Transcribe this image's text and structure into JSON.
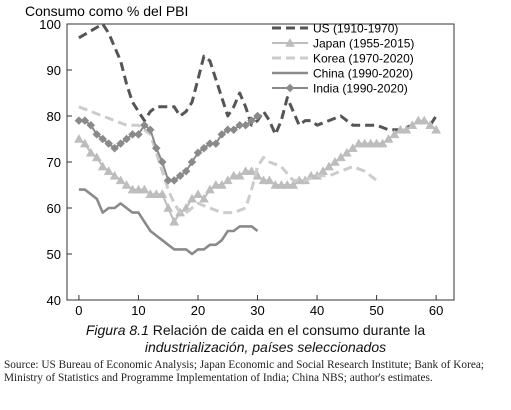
{
  "chart_data": {
    "type": "line",
    "title": "Consumo como % del PBI",
    "xlabel": "",
    "ylabel": "",
    "xlim": [
      -2,
      63
    ],
    "ylim": [
      40,
      100
    ],
    "x_ticks": [
      0,
      10,
      20,
      30,
      40,
      50,
      60
    ],
    "y_ticks": [
      40,
      50,
      60,
      70,
      80,
      90,
      100
    ],
    "legend_position": "top-right",
    "series": [
      {
        "name": "US (1910-1970)",
        "style": "dashed",
        "color": "#555555",
        "marker": "none",
        "points": [
          [
            0,
            97
          ],
          [
            2,
            98.5
          ],
          [
            4,
            100
          ],
          [
            5,
            98
          ],
          [
            6,
            95
          ],
          [
            7,
            92
          ],
          [
            8,
            87
          ],
          [
            9,
            83
          ],
          [
            10,
            81
          ],
          [
            11,
            79
          ],
          [
            12,
            81
          ],
          [
            13,
            82
          ],
          [
            14,
            82
          ],
          [
            15,
            82
          ],
          [
            16,
            82
          ],
          [
            17,
            80
          ],
          [
            18,
            81
          ],
          [
            19,
            83
          ],
          [
            20,
            88
          ],
          [
            21,
            93
          ],
          [
            22,
            92
          ],
          [
            23,
            88
          ],
          [
            24,
            84
          ],
          [
            25,
            80
          ],
          [
            26,
            82
          ],
          [
            27,
            85
          ],
          [
            28,
            82
          ],
          [
            29,
            78
          ],
          [
            30,
            79
          ],
          [
            31,
            81
          ],
          [
            32,
            79
          ],
          [
            33,
            76
          ],
          [
            34,
            79
          ],
          [
            35,
            84
          ],
          [
            36,
            81
          ],
          [
            37,
            78
          ],
          [
            38,
            79
          ],
          [
            39,
            79
          ],
          [
            40,
            78
          ],
          [
            42,
            79
          ],
          [
            44,
            80
          ],
          [
            46,
            78
          ],
          [
            48,
            78
          ],
          [
            50,
            78
          ],
          [
            52,
            77
          ],
          [
            54,
            77
          ],
          [
            56,
            78
          ],
          [
            58,
            79
          ],
          [
            59,
            78
          ],
          [
            60,
            80
          ]
        ]
      },
      {
        "name": "Japan (1955-2015)",
        "style": "solid",
        "color": "#bdbdbd",
        "marker": "triangle",
        "points": [
          [
            0,
            75
          ],
          [
            1,
            74
          ],
          [
            2,
            72
          ],
          [
            3,
            71
          ],
          [
            4,
            69
          ],
          [
            5,
            68
          ],
          [
            6,
            67
          ],
          [
            7,
            66
          ],
          [
            8,
            65
          ],
          [
            9,
            64
          ],
          [
            10,
            64
          ],
          [
            11,
            64
          ],
          [
            12,
            63
          ],
          [
            13,
            63
          ],
          [
            14,
            63
          ],
          [
            15,
            60
          ],
          [
            16,
            57
          ],
          [
            17,
            59
          ],
          [
            18,
            60
          ],
          [
            19,
            62
          ],
          [
            20,
            63
          ],
          [
            21,
            62
          ],
          [
            22,
            64
          ],
          [
            23,
            65
          ],
          [
            24,
            65
          ],
          [
            25,
            66
          ],
          [
            26,
            67
          ],
          [
            27,
            67
          ],
          [
            28,
            68
          ],
          [
            29,
            68
          ],
          [
            30,
            67
          ],
          [
            31,
            66
          ],
          [
            32,
            66
          ],
          [
            33,
            65
          ],
          [
            34,
            65
          ],
          [
            35,
            65
          ],
          [
            36,
            65
          ],
          [
            37,
            66
          ],
          [
            38,
            66
          ],
          [
            39,
            67
          ],
          [
            40,
            67
          ],
          [
            41,
            68
          ],
          [
            42,
            69
          ],
          [
            43,
            70
          ],
          [
            44,
            71
          ],
          [
            45,
            72
          ],
          [
            46,
            73
          ],
          [
            47,
            74
          ],
          [
            48,
            74
          ],
          [
            49,
            74
          ],
          [
            50,
            74
          ],
          [
            51,
            74
          ],
          [
            52,
            75
          ],
          [
            53,
            76
          ],
          [
            54,
            77
          ],
          [
            55,
            77
          ],
          [
            56,
            78
          ],
          [
            57,
            79
          ],
          [
            58,
            79
          ],
          [
            59,
            78
          ],
          [
            60,
            77
          ]
        ]
      },
      {
        "name": "Korea (1970-2020)",
        "style": "dashed",
        "color": "#cccccc",
        "marker": "none",
        "points": [
          [
            0,
            82
          ],
          [
            2,
            81
          ],
          [
            4,
            80
          ],
          [
            6,
            79
          ],
          [
            8,
            78
          ],
          [
            10,
            78
          ],
          [
            12,
            76
          ],
          [
            14,
            68
          ],
          [
            15,
            64
          ],
          [
            16,
            61
          ],
          [
            17,
            59
          ],
          [
            18,
            59
          ],
          [
            19,
            60
          ],
          [
            20,
            61
          ],
          [
            22,
            60
          ],
          [
            24,
            59
          ],
          [
            26,
            59
          ],
          [
            28,
            60
          ],
          [
            29,
            64
          ],
          [
            30,
            69
          ],
          [
            31,
            71
          ],
          [
            32,
            70
          ],
          [
            34,
            69
          ],
          [
            36,
            66
          ],
          [
            38,
            66
          ],
          [
            40,
            67
          ],
          [
            42,
            67
          ],
          [
            44,
            68
          ],
          [
            46,
            69
          ],
          [
            48,
            68
          ],
          [
            50,
            66
          ]
        ]
      },
      {
        "name": "China (1990-2020)",
        "style": "solid",
        "color": "#8a8a8a",
        "marker": "none",
        "points": [
          [
            0,
            64
          ],
          [
            1,
            64
          ],
          [
            2,
            63
          ],
          [
            3,
            62
          ],
          [
            4,
            59
          ],
          [
            5,
            60
          ],
          [
            6,
            60
          ],
          [
            7,
            61
          ],
          [
            8,
            60
          ],
          [
            9,
            59
          ],
          [
            10,
            59
          ],
          [
            11,
            57
          ],
          [
            12,
            55
          ],
          [
            13,
            54
          ],
          [
            14,
            53
          ],
          [
            15,
            52
          ],
          [
            16,
            51
          ],
          [
            17,
            51
          ],
          [
            18,
            51
          ],
          [
            19,
            50
          ],
          [
            20,
            51
          ],
          [
            21,
            51
          ],
          [
            22,
            52
          ],
          [
            23,
            52
          ],
          [
            24,
            53
          ],
          [
            25,
            55
          ],
          [
            26,
            55
          ],
          [
            27,
            56
          ],
          [
            28,
            56
          ],
          [
            29,
            56
          ],
          [
            30,
            55
          ]
        ]
      },
      {
        "name": "India (1990-2020)",
        "style": "solid",
        "color": "#8a8a8a",
        "marker": "diamond",
        "points": [
          [
            0,
            79
          ],
          [
            1,
            79
          ],
          [
            2,
            78
          ],
          [
            3,
            76
          ],
          [
            4,
            75
          ],
          [
            5,
            74
          ],
          [
            6,
            73
          ],
          [
            7,
            74
          ],
          [
            8,
            75
          ],
          [
            9,
            76
          ],
          [
            10,
            76
          ],
          [
            11,
            78
          ],
          [
            12,
            77
          ],
          [
            13,
            73
          ],
          [
            14,
            70
          ],
          [
            15,
            66
          ],
          [
            16,
            66
          ],
          [
            17,
            67
          ],
          [
            18,
            68
          ],
          [
            19,
            70
          ],
          [
            20,
            72
          ],
          [
            21,
            73
          ],
          [
            22,
            74
          ],
          [
            23,
            74
          ],
          [
            24,
            76
          ],
          [
            25,
            77
          ],
          [
            26,
            77
          ],
          [
            27,
            78
          ],
          [
            28,
            78
          ],
          [
            29,
            79
          ],
          [
            30,
            80
          ]
        ]
      }
    ]
  },
  "caption": {
    "figure_label": "Figura 8.1",
    "text_line1": " Relación de caida en el consumo durante la",
    "text_line2": "industrialización, países seleccionados"
  },
  "source_text": "Source: US Bureau of Economic Analysis; Japan Economic and Social Research Institute; Bank of Korea; Ministry of Statistics and Programme Implementation of India; China NBS; author's estimates."
}
